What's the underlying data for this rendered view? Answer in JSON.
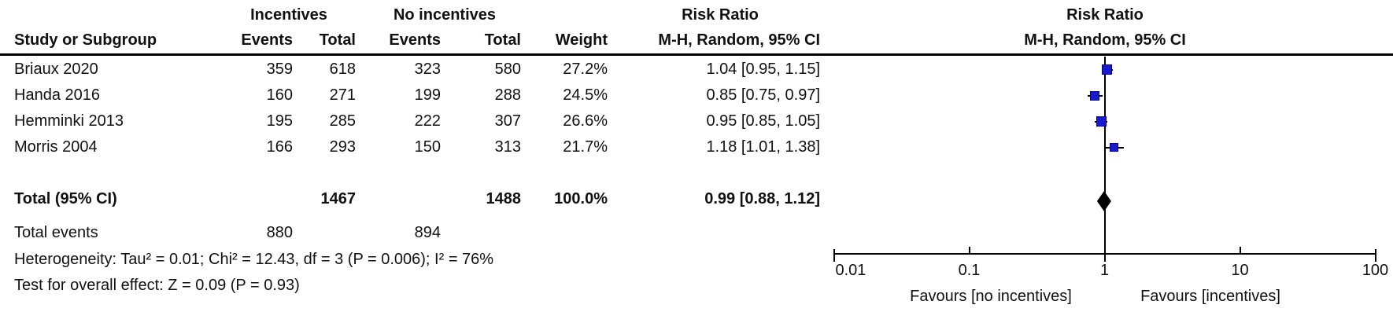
{
  "table": {
    "headers": {
      "group1": "Incentives",
      "group2": "No incentives",
      "risk_ratio": "Risk Ratio",
      "study": "Study or Subgroup",
      "events": "Events",
      "total": "Total",
      "weight": "Weight",
      "mh_ci": "M-H, Random, 95% CI"
    },
    "plot_header": {
      "title": "Risk Ratio",
      "subtitle": "M-H, Random, 95% CI"
    }
  },
  "chart_data": {
    "type": "forest",
    "x_scale": "log10",
    "axis_ticks": [
      0.01,
      0.1,
      1,
      10,
      100
    ],
    "axis_tick_labels": [
      "0.01",
      "0.1",
      "1",
      "10",
      "100"
    ],
    "axis_range": [
      0.01,
      100
    ],
    "favours_left": "Favours [no incentives]",
    "favours_right": "Favours [incentives]",
    "marker_color": "#1A1ACC",
    "marker_border_color": "#00008B",
    "diamond_color": "#000000",
    "studies": [
      {
        "name": "Briaux 2020",
        "events1": "359",
        "total1": "618",
        "events2": "323",
        "total2": "580",
        "weight": "27.2%",
        "weight_pct": 27.2,
        "rr_text": "1.04 [0.95, 1.15]",
        "rr": 1.04,
        "ci_low": 0.95,
        "ci_high": 1.15
      },
      {
        "name": "Handa 2016",
        "events1": "160",
        "total1": "271",
        "events2": "199",
        "total2": "288",
        "weight": "24.5%",
        "weight_pct": 24.5,
        "rr_text": "0.85 [0.75, 0.97]",
        "rr": 0.85,
        "ci_low": 0.75,
        "ci_high": 0.97
      },
      {
        "name": "Hemminki 2013",
        "events1": "195",
        "total1": "285",
        "events2": "222",
        "total2": "307",
        "weight": "26.6%",
        "weight_pct": 26.6,
        "rr_text": "0.95 [0.85, 1.05]",
        "rr": 0.95,
        "ci_low": 0.85,
        "ci_high": 1.05
      },
      {
        "name": "Morris 2004",
        "events1": "166",
        "total1": "293",
        "events2": "150",
        "total2": "313",
        "weight": "21.7%",
        "weight_pct": 21.7,
        "rr_text": "1.18 [1.01, 1.38]",
        "rr": 1.18,
        "ci_low": 1.01,
        "ci_high": 1.38
      }
    ],
    "total": {
      "label": "Total (95% CI)",
      "total1": "1467",
      "total2": "1488",
      "weight": "100.0%",
      "rr_text": "0.99 [0.88, 1.12]",
      "rr": 0.99,
      "ci_low": 0.88,
      "ci_high": 1.12
    },
    "total_events": {
      "label": "Total events",
      "events1": "880",
      "events2": "894"
    },
    "heterogeneity": "Heterogeneity: Tau² = 0.01; Chi² = 12.43, df = 3 (P = 0.006); I² = 76%",
    "overall_effect": "Test for overall effect: Z = 0.09 (P = 0.93)"
  }
}
